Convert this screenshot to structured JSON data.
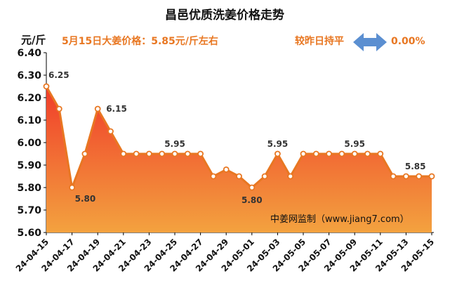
{
  "header": {
    "title": "昌邑优质洗姜价格走势",
    "unit": "元/斤",
    "price_text": "5月15日大姜价格：5.85元/斤左右",
    "compare_text": "较昨日持平",
    "change_text": "0.00%",
    "source": "中姜网监制（www.jiang7.com）"
  },
  "colors": {
    "line": "#e87722",
    "fill_top": "#f03c2a",
    "fill_bottom": "#f3a23f",
    "accent": "#e87722",
    "arrow": "#5b8fd1"
  },
  "chart_data": {
    "type": "area",
    "title": "昌邑优质洗姜价格走势",
    "ylabel": "元/斤",
    "ylim": [
      5.6,
      6.4
    ],
    "yticks": [
      "5.60",
      "5.70",
      "5.80",
      "5.90",
      "6.00",
      "6.10",
      "6.20",
      "6.30",
      "6.40"
    ],
    "x": [
      "24-04-15",
      "24-04-16",
      "24-04-17",
      "24-04-18",
      "24-04-19",
      "24-04-20",
      "24-04-21",
      "24-04-22",
      "24-04-23",
      "24-04-24",
      "24-04-25",
      "24-04-26",
      "24-04-27",
      "24-04-28",
      "24-04-29",
      "24-04-30",
      "24-05-01",
      "24-05-02",
      "24-05-03",
      "24-05-04",
      "24-05-05",
      "24-05-06",
      "24-05-07",
      "24-05-08",
      "24-05-09",
      "24-05-10",
      "24-05-11",
      "24-05-12",
      "24-05-13",
      "24-05-14",
      "24-05-15"
    ],
    "xtick_labels": [
      "24-04-15",
      "24-04-17",
      "24-04-19",
      "24-04-21",
      "24-04-23",
      "24-04-25",
      "24-04-27",
      "24-04-29",
      "24-05-01",
      "24-05-03",
      "24-05-05",
      "24-05-07",
      "24-05-09",
      "24-05-11",
      "24-05-13",
      "24-05-15"
    ],
    "values": [
      6.25,
      6.15,
      5.8,
      5.95,
      6.15,
      6.05,
      5.95,
      5.95,
      5.95,
      5.95,
      5.95,
      5.95,
      5.95,
      5.85,
      5.88,
      5.85,
      5.8,
      5.85,
      5.95,
      5.85,
      5.95,
      5.95,
      5.95,
      5.95,
      5.95,
      5.95,
      5.95,
      5.85,
      5.85,
      5.85,
      5.85
    ],
    "data_labels": [
      {
        "index": 0,
        "text": "6.25"
      },
      {
        "index": 2,
        "text": "5.80"
      },
      {
        "index": 4,
        "text": "6.15"
      },
      {
        "index": 10,
        "text": "5.95"
      },
      {
        "index": 16,
        "text": "5.80"
      },
      {
        "index": 18,
        "text": "5.95"
      },
      {
        "index": 24,
        "text": "5.95"
      },
      {
        "index": 29,
        "text": "5.85"
      }
    ],
    "grid": false
  }
}
